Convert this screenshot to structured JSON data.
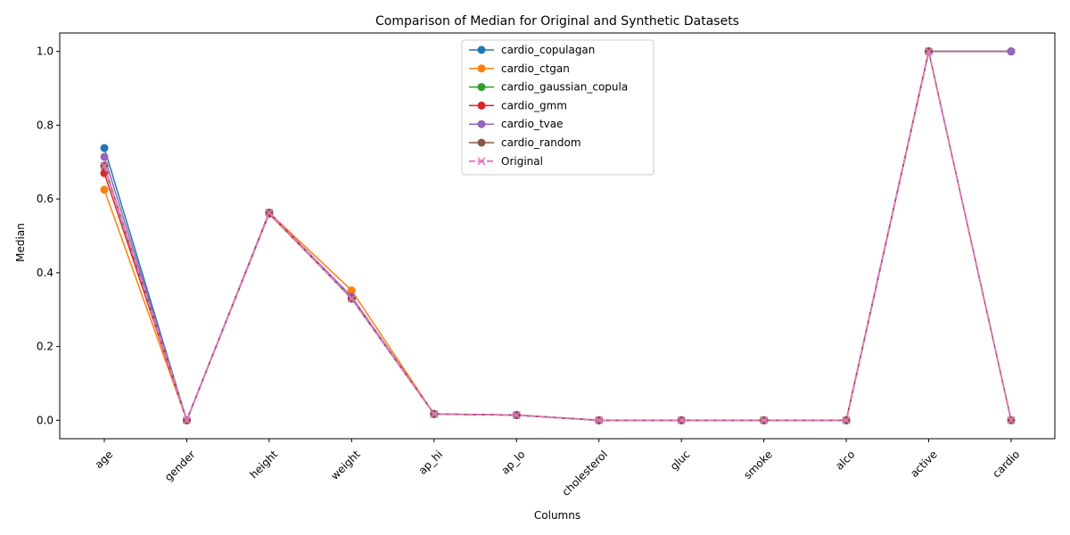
{
  "chart_data": {
    "type": "line",
    "title": "Comparison of Median for Original and Synthetic Datasets",
    "xlabel": "Columns",
    "ylabel": "Median",
    "categories": [
      "age",
      "gender",
      "height",
      "weight",
      "ap_hi",
      "ap_lo",
      "cholesterol",
      "gluc",
      "smoke",
      "alco",
      "active",
      "cardio"
    ],
    "ylim": [
      -0.05,
      1.05
    ],
    "yticks": [
      "0.0",
      "0.2",
      "0.4",
      "0.6",
      "0.8",
      "1.0"
    ],
    "grid": false,
    "legend_position": "top-center",
    "series": [
      {
        "name": "cardio_copulagan",
        "color": "#1f77b4",
        "marker": "circle",
        "dashed": false,
        "values": [
          0.738,
          0.0,
          0.563,
          0.335,
          0.017,
          0.014,
          0.0,
          0.0,
          0.0,
          0.0,
          1.0,
          1.0
        ]
      },
      {
        "name": "cardio_ctgan",
        "color": "#ff7f0e",
        "marker": "circle",
        "dashed": false,
        "values": [
          0.625,
          0.0,
          0.563,
          0.352,
          0.017,
          0.014,
          0.0,
          0.0,
          0.0,
          0.0,
          1.0,
          1.0
        ]
      },
      {
        "name": "cardio_gaussian_copula",
        "color": "#2ca02c",
        "marker": "circle",
        "dashed": false,
        "values": [
          0.688,
          0.0,
          0.563,
          0.33,
          0.017,
          0.014,
          0.0,
          0.0,
          0.0,
          0.0,
          1.0,
          1.0
        ]
      },
      {
        "name": "cardio_gmm",
        "color": "#d62728",
        "marker": "circle",
        "dashed": false,
        "values": [
          0.67,
          0.0,
          0.56,
          0.33,
          0.017,
          0.014,
          0.0,
          0.0,
          0.0,
          0.0,
          1.0,
          1.0
        ]
      },
      {
        "name": "cardio_tvae",
        "color": "#9467bd",
        "marker": "circle",
        "dashed": false,
        "values": [
          0.714,
          0.0,
          0.563,
          0.335,
          0.017,
          0.014,
          0.0,
          0.0,
          0.0,
          0.0,
          1.0,
          1.0
        ]
      },
      {
        "name": "cardio_random",
        "color": "#8c564b",
        "marker": "circle",
        "dashed": false,
        "values": [
          0.69,
          0.0,
          0.563,
          0.33,
          0.017,
          0.014,
          0.0,
          0.0,
          0.0,
          0.0,
          1.0,
          0.0
        ]
      },
      {
        "name": "Original",
        "color": "#e377c2",
        "marker": "x",
        "dashed": true,
        "values": [
          0.69,
          0.0,
          0.563,
          0.33,
          0.017,
          0.014,
          0.0,
          0.0,
          0.0,
          0.0,
          1.0,
          0.0
        ]
      }
    ]
  }
}
